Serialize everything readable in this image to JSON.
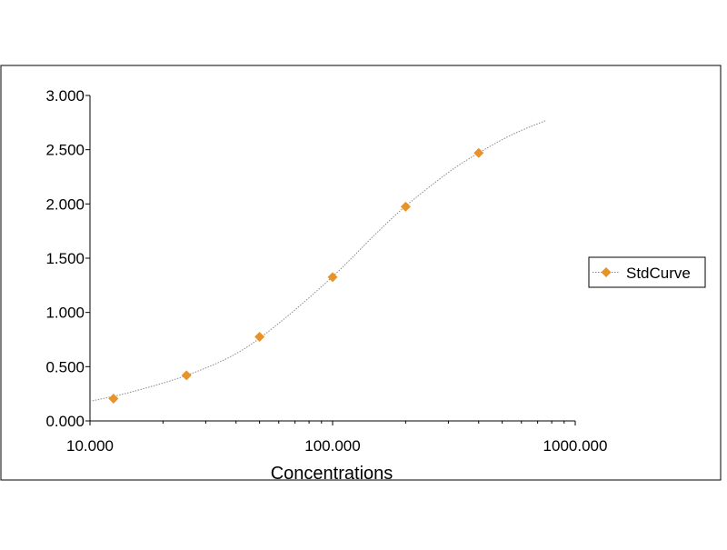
{
  "chart_data": {
    "type": "scatter",
    "title": "",
    "xlabel": "Concentrations",
    "ylabel": "",
    "x_scale": "log",
    "xlim": [
      10,
      1000
    ],
    "ylim": [
      0,
      3
    ],
    "grid": false,
    "legend_placement": "right",
    "x_ticks": [
      10,
      100,
      1000
    ],
    "x_tick_labels": [
      "10.000",
      "100.000",
      "1000.000"
    ],
    "y_ticks": [
      0,
      0.5,
      1,
      1.5,
      2,
      2.5,
      3
    ],
    "y_tick_labels": [
      "0.000",
      "0.500",
      "1.000",
      "1.500",
      "2.000",
      "2.500",
      "3.000"
    ],
    "series": [
      {
        "name": "StdCurve",
        "marker": "diamond",
        "color": "#e8922a",
        "x": [
          12.5,
          25,
          50,
          100,
          200,
          400
        ],
        "y": [
          0.205,
          0.42,
          0.775,
          1.325,
          1.975,
          2.47
        ]
      }
    ],
    "fit_curve": {
      "color": "#8a8a8a",
      "x": [
        10,
        15,
        25,
        40,
        60,
        100,
        150,
        200,
        300,
        400,
        550,
        760
      ],
      "y": [
        0.18,
        0.27,
        0.42,
        0.62,
        0.9,
        1.33,
        1.72,
        1.98,
        2.29,
        2.47,
        2.64,
        2.77
      ]
    }
  }
}
